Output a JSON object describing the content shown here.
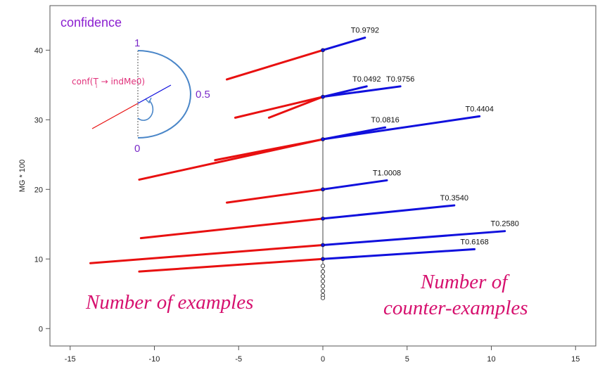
{
  "chart_data": {
    "type": "line",
    "title": "",
    "xlabel": "",
    "ylabel": "MG * 100",
    "xlim": [
      -16.2,
      16.2
    ],
    "ylim": [
      -2.5,
      46.4
    ],
    "xticks": [
      -15,
      -10,
      -5,
      0,
      5,
      10,
      15
    ],
    "yticks": [
      0,
      10,
      20,
      30,
      40
    ],
    "grid": false,
    "colors": {
      "examples": "#e81010",
      "counter_examples": "#1010dd",
      "axis_line": "#444444"
    },
    "series": [
      {
        "name": "T0.9792",
        "y": 40.0,
        "left": [
          -5.7,
          35.8
        ],
        "right": [
          2.5,
          41.8
        ]
      },
      {
        "name": "T0.0492",
        "y": 33.3,
        "left": [
          -5.2,
          30.3
        ],
        "right": [
          2.6,
          34.8
        ]
      },
      {
        "name": "T0.9756",
        "y": 33.3,
        "left": [
          -3.2,
          30.3
        ],
        "right": [
          4.6,
          34.8
        ]
      },
      {
        "name": "T0.0816",
        "y": 27.2,
        "left": [
          -6.4,
          24.2
        ],
        "right": [
          3.7,
          28.9
        ]
      },
      {
        "name": "T0.4404",
        "y": 27.2,
        "left": [
          -10.9,
          21.4
        ],
        "right": [
          9.3,
          30.5
        ]
      },
      {
        "name": "T1.0008",
        "y": 20.0,
        "left": [
          -5.7,
          18.1
        ],
        "right": [
          3.8,
          21.3
        ]
      },
      {
        "name": "T0.3540",
        "y": 15.8,
        "left": [
          -10.8,
          13.0
        ],
        "right": [
          7.8,
          17.7
        ]
      },
      {
        "name": "T0.2580",
        "y": 12.0,
        "left": [
          -13.8,
          9.4
        ],
        "right": [
          10.8,
          14.0
        ]
      },
      {
        "name": "T0.6168",
        "y": 10.0,
        "left": [
          -10.9,
          8.2
        ],
        "right": [
          9.0,
          11.4
        ]
      }
    ],
    "extra_points_y": [
      9.0,
      8.2,
      7.5,
      6.8,
      6.1,
      5.4,
      4.8,
      4.4
    ]
  },
  "annotations": {
    "examples": "Number of examples",
    "counter_line1": "Number of",
    "counter_line2": "counter-examples"
  },
  "legend": {
    "title": "confidence",
    "top": "1",
    "mid": "0.5",
    "bottom": "0",
    "formula": "conf(T  → indMe0)",
    "subscript": "i"
  }
}
